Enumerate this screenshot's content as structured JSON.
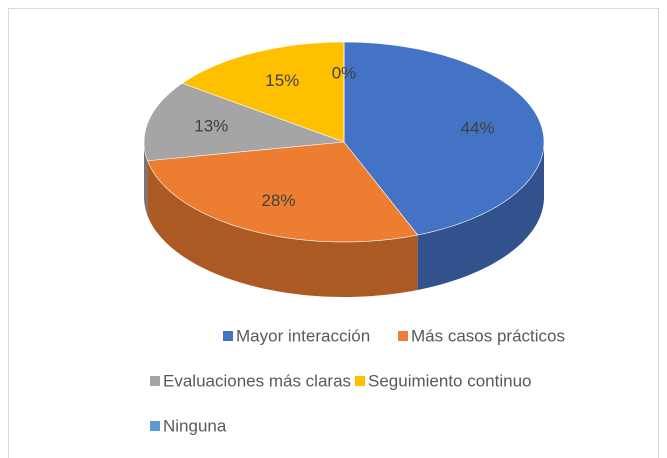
{
  "chart_data": {
    "type": "pie3d",
    "categories": [
      "Mayor interacción",
      "Más casos prácticos",
      "Evaluaciones más claras",
      "Seguimiento continuo",
      "Ninguna"
    ],
    "values": [
      44,
      28,
      13,
      15,
      0
    ],
    "value_labels": [
      "44%",
      "28%",
      "13%",
      "15%",
      "0%"
    ],
    "colors": [
      "#4472c4",
      "#ed7d31",
      "#a5a5a5",
      "#ffc000",
      "#5b9bd5"
    ],
    "legend": "bottom"
  }
}
